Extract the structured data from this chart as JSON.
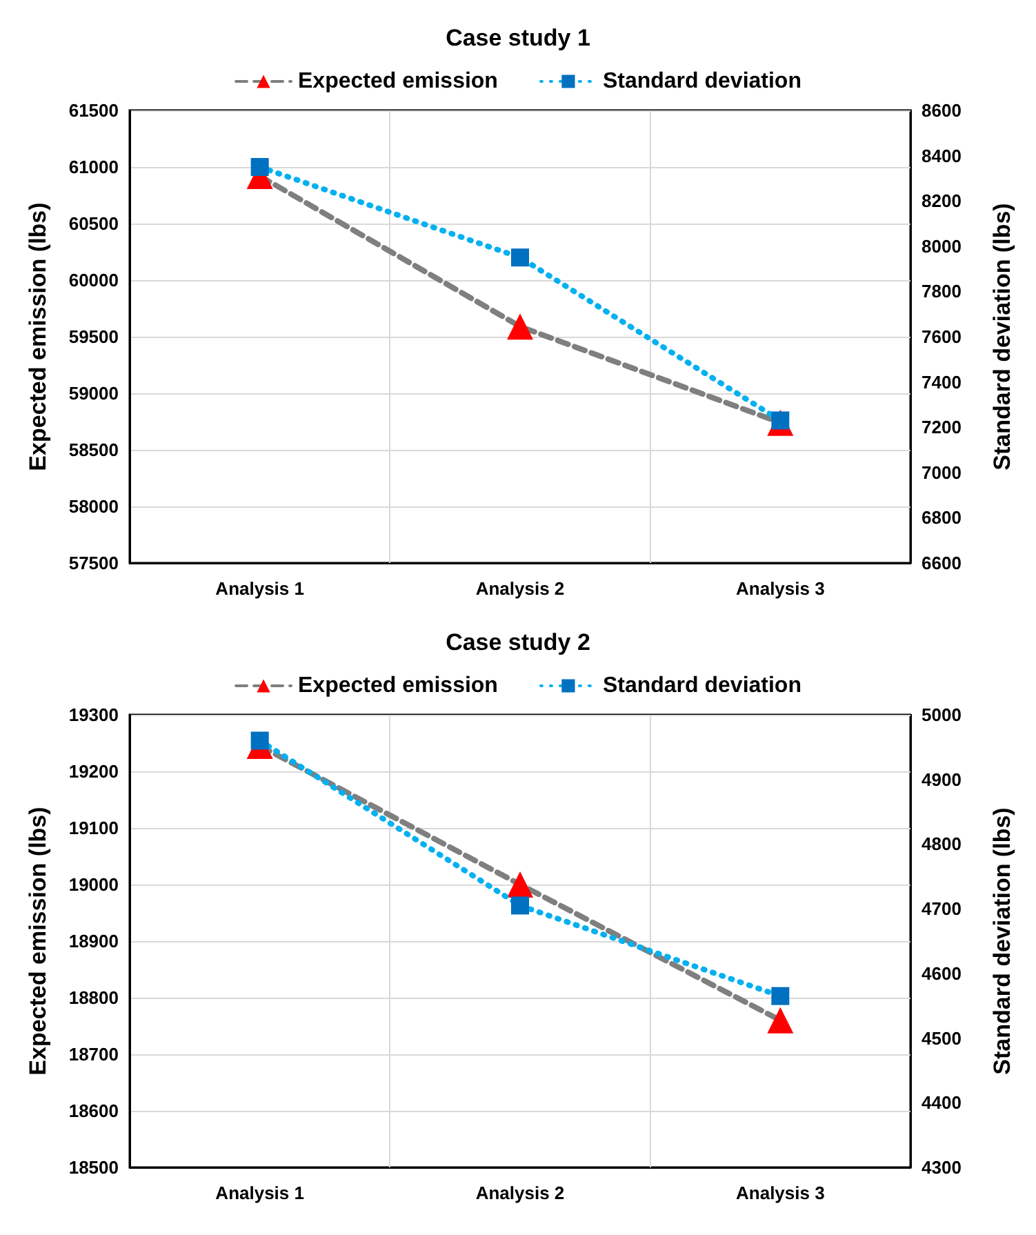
{
  "chart_data": [
    {
      "type": "line",
      "title": "Case study 1",
      "categories": [
        "Analysis 1",
        "Analysis 2",
        "Analysis 3"
      ],
      "ylabel": "Expected emission (lbs)",
      "y2label": "Standard deviation (lbs)",
      "ylim": [
        57500,
        61500
      ],
      "yticks": [
        57500,
        58000,
        58500,
        59000,
        59500,
        60000,
        60500,
        61000,
        61500
      ],
      "y2lim": [
        6600,
        8600
      ],
      "y2ticks": [
        6600,
        6800,
        7000,
        7200,
        7400,
        7600,
        7800,
        8000,
        8200,
        8400,
        8600
      ],
      "grid": true,
      "legend": "top",
      "series": [
        {
          "name": "Expected emission",
          "color": "#7f7f7f",
          "colors": [
            "#ff0000",
            "#ff0000",
            "#ff0000"
          ],
          "marker": "triangle",
          "line_style": "dashed",
          "values": [
            60920,
            59590,
            58740
          ]
        },
        {
          "name": "Standard deviation",
          "axis": "y2",
          "color": "#00b0f0",
          "colors": [
            "#0070c0",
            "#0070c0",
            "#0070c0"
          ],
          "marker": "square",
          "line_style": "dotted",
          "values": [
            8350,
            7950,
            7230
          ]
        }
      ]
    },
    {
      "type": "line",
      "title": "Case study 2",
      "categories": [
        "Analysis 1",
        "Analysis 2",
        "Analysis 3"
      ],
      "ylabel": "Expected emission (lbs)",
      "y2label": "Standard deviation (lbs)",
      "ylim": [
        18500,
        19300
      ],
      "yticks": [
        18500,
        18600,
        18700,
        18800,
        18900,
        19000,
        19100,
        19200,
        19300
      ],
      "y2lim": [
        4300,
        5000
      ],
      "y2ticks": [
        4300,
        4400,
        4500,
        4600,
        4700,
        4800,
        4900,
        5000
      ],
      "grid": true,
      "legend": "top",
      "series": [
        {
          "name": "Expected emission",
          "color": "#7f7f7f",
          "colors": [
            "#ff0000",
            "#ff0000",
            "#ff0000"
          ],
          "marker": "triangle",
          "line_style": "dashed",
          "values": [
            19245,
            19000,
            18760
          ]
        },
        {
          "name": "Standard deviation",
          "axis": "y2",
          "color": "#00b0f0",
          "colors": [
            "#0070c0",
            "#0070c0",
            "#0070c0"
          ],
          "marker": "square",
          "line_style": "dotted",
          "values": [
            4960,
            4705,
            4565
          ]
        }
      ]
    }
  ]
}
